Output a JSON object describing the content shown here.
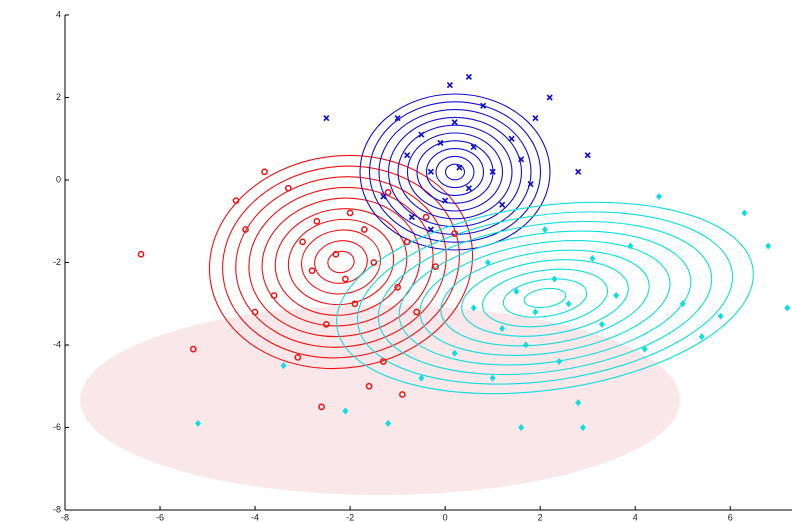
{
  "chart_data": {
    "type": "scatter",
    "xlim": [
      -8,
      7.3
    ],
    "ylim": [
      -8,
      4
    ],
    "xticks": [
      -8,
      -6,
      -4,
      -2,
      0,
      2,
      4,
      6
    ],
    "yticks": [
      -8,
      -6,
      -4,
      -2,
      0,
      2,
      4
    ],
    "series": [
      {
        "color": "#ee1111",
        "marker": "circle",
        "x": [
          -6.4,
          -5.3,
          -4.4,
          -4.2,
          -3.8,
          -3.6,
          -3.3,
          -3.0,
          -2.8,
          -2.6,
          -2.5,
          -2.3,
          -2.1,
          -2.0,
          -1.9,
          -1.7,
          -1.5,
          -1.3,
          -1.2,
          -1.0,
          -0.8,
          -0.6,
          -0.4,
          -0.2,
          0.2,
          -3.1,
          -2.7,
          -4.0,
          -1.6,
          -0.9
        ],
        "y": [
          -1.8,
          -4.1,
          -0.5,
          -1.2,
          0.2,
          -2.8,
          -0.2,
          -1.5,
          -2.2,
          -5.5,
          -3.5,
          -1.8,
          -2.4,
          -0.8,
          -3.0,
          -1.2,
          -2.0,
          -4.4,
          -0.3,
          -2.6,
          -1.5,
          -3.2,
          -0.9,
          -2.1,
          -1.3,
          -4.3,
          -1.0,
          -3.2,
          -5.0,
          -5.2
        ]
      },
      {
        "color": "#1111cc",
        "marker": "x",
        "x": [
          -2.5,
          -1.0,
          -0.8,
          -0.5,
          -0.3,
          -0.1,
          0.0,
          0.2,
          0.3,
          0.5,
          0.6,
          0.8,
          1.0,
          1.2,
          1.4,
          1.6,
          1.8,
          0.5,
          2.2,
          2.8,
          3.0,
          -1.3,
          -0.7,
          0.1,
          1.9,
          -0.3
        ],
        "y": [
          1.5,
          1.5,
          0.6,
          1.1,
          0.2,
          0.9,
          -0.5,
          1.4,
          0.3,
          -0.2,
          0.8,
          1.8,
          0.2,
          -0.6,
          1.0,
          0.5,
          -0.1,
          2.5,
          2.0,
          0.2,
          0.6,
          -0.4,
          -0.9,
          2.3,
          1.5,
          -1.2
        ]
      },
      {
        "color": "#11dddd",
        "marker": "diamond",
        "x": [
          -5.2,
          -3.4,
          -2.1,
          -1.2,
          -0.5,
          0.2,
          0.6,
          0.9,
          1.2,
          1.5,
          1.7,
          1.9,
          2.1,
          2.3,
          2.4,
          2.6,
          2.8,
          2.9,
          3.1,
          3.3,
          3.6,
          3.9,
          4.2,
          4.5,
          5.0,
          5.4,
          5.8,
          6.3,
          6.8,
          7.2,
          1.6,
          1.0
        ],
        "y": [
          -5.9,
          -4.5,
          -5.6,
          -5.9,
          -4.8,
          -4.2,
          -3.1,
          -2.0,
          -3.6,
          -2.7,
          -4.0,
          -3.2,
          -1.2,
          -2.4,
          -4.4,
          -3.0,
          -5.4,
          -6.0,
          -1.9,
          -3.5,
          -2.8,
          -1.6,
          -4.1,
          -0.4,
          -3.0,
          -3.8,
          -3.3,
          -0.8,
          -1.6,
          -3.1,
          -6.0,
          -4.8
        ]
      }
    ]
  }
}
